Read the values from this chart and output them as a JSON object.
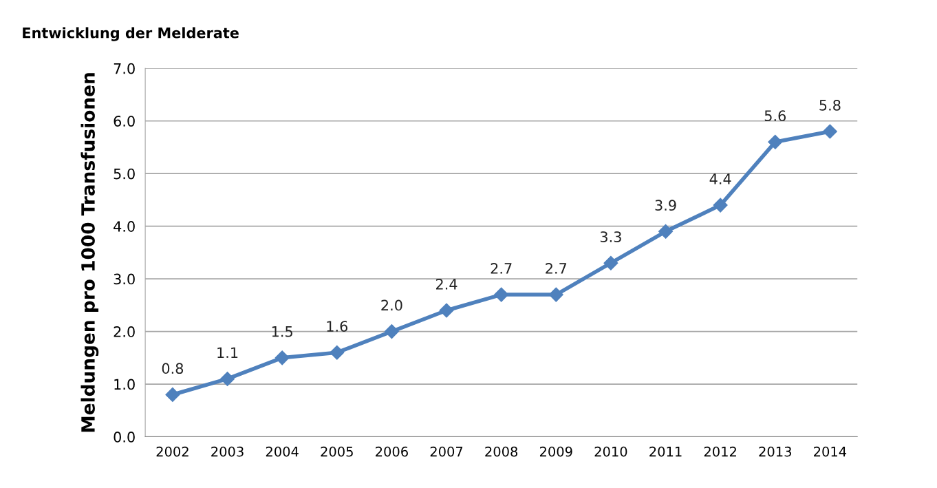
{
  "chart_data": {
    "type": "line",
    "title": "Entwicklung der Melderate",
    "ylabel": "Meldungen pro 1000 Transfusionen",
    "categories": [
      "2002",
      "2003",
      "2004",
      "2005",
      "2006",
      "2007",
      "2008",
      "2009",
      "2010",
      "2011",
      "2012",
      "2013",
      "2014"
    ],
    "series": [
      {
        "color": "#4f81bd",
        "values": [
          0.8,
          1.1,
          1.5,
          1.6,
          2.0,
          2.4,
          2.7,
          2.7,
          3.3,
          3.9,
          4.4,
          5.6,
          5.8
        ],
        "value_labels": [
          "0.8",
          "1.1",
          "1.5",
          "1.6",
          "2.0",
          "2.4",
          "2.7",
          "2.7",
          "3.3",
          "3.9",
          "4.4",
          "5.6",
          "5.8"
        ]
      }
    ],
    "ylim": [
      0,
      7
    ],
    "yticks": [
      {
        "value": 0,
        "label": "0.0"
      },
      {
        "value": 1,
        "label": "1.0"
      },
      {
        "value": 2,
        "label": "2.0"
      },
      {
        "value": 3,
        "label": "3.0"
      },
      {
        "value": 4,
        "label": "4.0"
      },
      {
        "value": 5,
        "label": "5.0"
      },
      {
        "value": 6,
        "label": "6.0"
      },
      {
        "value": 7,
        "label": "7.0"
      }
    ],
    "grid": "y",
    "marker": "diamond",
    "line_style": "solid",
    "legend": false
  }
}
